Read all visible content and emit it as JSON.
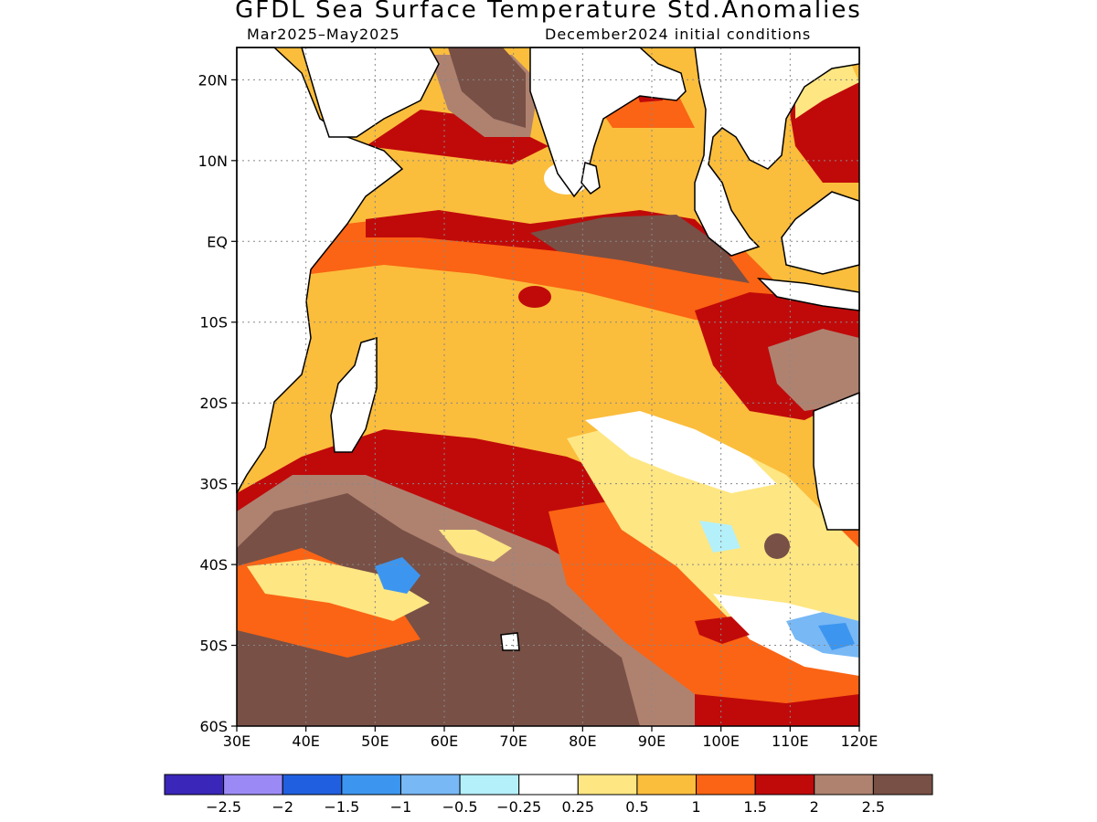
{
  "title": "GFDL Sea Surface Temperature Std.Anomalies",
  "subtitle_left": "Mar2025–May2025",
  "subtitle_right": "December2024 initial conditions",
  "map": {
    "lon_ticks": [
      "30E",
      "40E",
      "50E",
      "60E",
      "70E",
      "80E",
      "90E",
      "100E",
      "110E",
      "120E"
    ],
    "lat_ticks": [
      "20N",
      "10N",
      "EQ",
      "10S",
      "20S",
      "30S",
      "40S",
      "50S",
      "60S"
    ],
    "lon_range": [
      30,
      120
    ],
    "lat_range": [
      -60,
      24
    ],
    "grid": true
  },
  "colorbar": {
    "colors": [
      "#3a26b8",
      "#9b8af5",
      "#2060e0",
      "#3c96f0",
      "#78b8f5",
      "#b4f0fa",
      "#ffffff",
      "#fee682",
      "#fbbd3c",
      "#fa6414",
      "#c00a0a",
      "#af8270",
      "#785046"
    ],
    "labels": [
      "−2.5",
      "−2",
      "−1.5",
      "−1",
      "−0.5",
      "−0.25",
      "0.25",
      "0.5",
      "1",
      "1.5",
      "2",
      "2.5"
    ]
  }
}
